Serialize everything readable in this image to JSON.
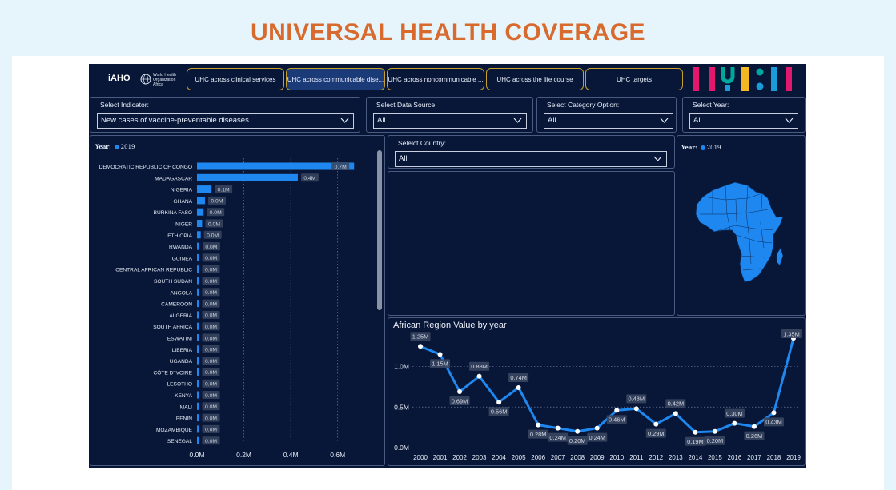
{
  "page_title": "UNIVERSAL HEALTH COVERAGE",
  "logo": {
    "iaho": "iAHO",
    "who": "World Health Organization",
    "region": "Africa"
  },
  "tabs": [
    {
      "label": "UHC across clinical services",
      "active": false
    },
    {
      "label": "UHC across communicable dise...",
      "active": true
    },
    {
      "label": "UHC across noncommunicable ...",
      "active": false
    },
    {
      "label": "UHC across the life course",
      "active": false
    },
    {
      "label": "UHC targets",
      "active": false
    }
  ],
  "brand_colors": [
    "#e3176d",
    "#00a79d",
    "#1a9cd8",
    "#f3b823",
    "#1a9cd8",
    "#e3176d"
  ],
  "filters": {
    "indicator": {
      "label": "Select Indicator:",
      "value": "New cases of vaccine-preventable diseases"
    },
    "data_source": {
      "label": "Select Data Source:",
      "value": "All"
    },
    "category": {
      "label": "Select Category Option:",
      "value": "All"
    },
    "year": {
      "label": "Select Year:",
      "value": "All"
    },
    "country": {
      "label": "Selelct Country:",
      "value": "All"
    }
  },
  "bar_legend": {
    "title": "Year:",
    "item": "2019"
  },
  "map_legend": {
    "title": "Year:",
    "item": "2019"
  },
  "accent": "#1e88f0",
  "chart_data": [
    {
      "type": "bar",
      "orientation": "horizontal",
      "categories": [
        "DEMOCRATIC REPUBLIC OF CONGO",
        "MADAGASCAR",
        "NIGERIA",
        "GHANA",
        "BURKINA FASO",
        "NIGER",
        "ETHIOPIA",
        "RWANDA",
        "GUINEA",
        "CENTRAL AFRICAN REPUBLIC",
        "SOUTH SUDAN",
        "ANGOLA",
        "CAMEROON",
        "ALGERIA",
        "SOUTH AFRICA",
        "ESWATINI",
        "LIBERIA",
        "UGANDA",
        "CÔTE D'IVOIRE",
        "LESOTHO",
        "KENYA",
        "MALI",
        "BENIN",
        "MOZAMBIQUE",
        "SENEGAL"
      ],
      "values": [
        0.67,
        0.43,
        0.062,
        0.034,
        0.028,
        0.022,
        0.016,
        0.01,
        0.009,
        0.008,
        0.008,
        0.007,
        0.007,
        0.006,
        0.006,
        0.005,
        0.005,
        0.005,
        0.005,
        0.004,
        0.004,
        0.004,
        0.004,
        0.003,
        0.003
      ],
      "data_labels": [
        "0.7M",
        "0.4M",
        "0.1M",
        "0.0M",
        "0.0M",
        "0.0M",
        "0.0M",
        "0.0M",
        "0.0M",
        "0.0M",
        "0.0M",
        "0.0M",
        "0.0M",
        "0.0M",
        "0.0M",
        "0.0M",
        "0.0M",
        "0.0M",
        "0.0M",
        "0.0M",
        "0.0M",
        "0.0M",
        "0.0M",
        "0.0M",
        "0.0M"
      ],
      "xticks": [
        "0.0M",
        "0.2M",
        "0.4M",
        "0.6M"
      ],
      "xlim": [
        0,
        0.7
      ],
      "series": [
        {
          "name": "2019"
        }
      ]
    },
    {
      "type": "line",
      "title": "African Region Value by year",
      "x": [
        "2000",
        "2001",
        "2002",
        "2003",
        "2004",
        "2005",
        "2006",
        "2007",
        "2008",
        "2009",
        "2010",
        "2011",
        "2012",
        "2013",
        "2014",
        "2015",
        "2016",
        "2017",
        "2018",
        "2019"
      ],
      "values": [
        1.25,
        1.15,
        0.69,
        0.88,
        0.56,
        0.74,
        0.28,
        0.24,
        0.2,
        0.24,
        0.46,
        0.48,
        0.29,
        0.42,
        0.19,
        0.2,
        0.3,
        0.26,
        0.43,
        1.35
      ],
      "data_labels": [
        "1.25M",
        "1.15M",
        "0.69M",
        "0.88M",
        "0.56M",
        "0.74M",
        "0.28M",
        "0.24M",
        "0.20M",
        "0.24M",
        "0.46M",
        "0.48M",
        "0.29M",
        "0.42M",
        "0.19M",
        "0.20M",
        "0.30M",
        "0.26M",
        "0.43M",
        "1.35M"
      ],
      "yticks": [
        "0.0M",
        "0.5M",
        "1.0M"
      ],
      "ylim": [
        0,
        1.4
      ]
    }
  ]
}
